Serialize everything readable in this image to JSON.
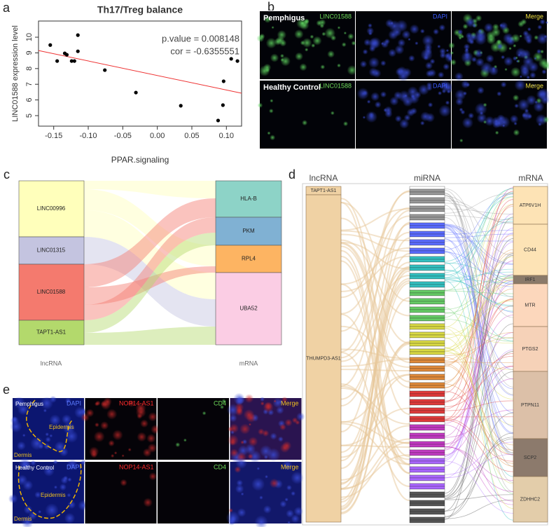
{
  "panel_labels": [
    "a",
    "b",
    "c",
    "d",
    "e"
  ],
  "chart_data": {
    "type": "scatter",
    "title": "Th17/Treg balance",
    "x_label": "PPAR.signaling",
    "y_label": "LINC01588 expression level",
    "annotations": [
      "p.value = 0.008148",
      "cor = -0.6355551"
    ],
    "x": [
      -0.155,
      -0.145,
      -0.134,
      -0.131,
      -0.124,
      -0.12,
      -0.115,
      -0.115,
      -0.076,
      -0.031,
      0.034,
      0.088,
      0.095,
      0.096,
      0.107,
      0.116
    ],
    "values": [
      9.5,
      8.48,
      8.97,
      8.88,
      8.48,
      8.48,
      9.1,
      10.13,
      7.9,
      6.47,
      5.63,
      4.69,
      5.67,
      7.19,
      8.62,
      8.48
    ],
    "color": "#000000",
    "fit_line": {
      "x": [
        -0.172,
        0.122
      ],
      "y": [
        9.15,
        6.43
      ],
      "color": "#ee3333"
    },
    "xlim": [
      -0.172,
      0.122
    ],
    "ylim": [
      4.33,
      11.03
    ],
    "xticks": [
      -0.15,
      {
        "value": -0.1,
        "label": "-0.10"
      },
      -0.05,
      {
        "value": 0,
        "label": "0.00"
      },
      0.05,
      {
        "value": 0.1,
        "label": "0.10"
      }
    ],
    "yticks": [
      5,
      6,
      7,
      8,
      9,
      10
    ]
  },
  "panel_b": {
    "rows": [
      {
        "label": "Pemphigus",
        "channels": [
          "LINC01588",
          "DAPI",
          "Merge"
        ]
      },
      {
        "label": "Healthy Control",
        "channels": [
          "LINC01588",
          "DAPI",
          "Merge"
        ]
      }
    ]
  },
  "panel_c": {
    "left_axis": "lncRNA",
    "right_axis": "mRNA",
    "left_nodes": [
      {
        "label": "LINC00996",
        "color": "#ffffbb"
      },
      {
        "label": "LINC01315",
        "color": "#c4c4e0"
      },
      {
        "label": "LINC01588",
        "color": "#f47a6e"
      },
      {
        "label": "TAPT1-AS1",
        "color": "#b3d96c"
      }
    ],
    "right_nodes": [
      {
        "label": "HLA-B",
        "color": "#8dd3c7"
      },
      {
        "label": "PKM",
        "color": "#80b1d3"
      },
      {
        "label": "RPL4",
        "color": "#fdb462"
      },
      {
        "label": "UBA52",
        "color": "#fbcde4"
      }
    ]
  },
  "panel_d": {
    "columns": [
      "lncRNA",
      "miRNA",
      "mRNA"
    ],
    "lncrna": [
      "TAPT1-AS1",
      "THUMPD3-AS1"
    ],
    "mrna": [
      "ATP6V1H",
      "CD44",
      "IRF1",
      "MTR",
      "PTGS2",
      "PTPN11",
      "SCP2",
      "ZDHHC2"
    ]
  },
  "panel_e": {
    "rows": [
      {
        "label": "Pemphigus",
        "channels": [
          "DAPI",
          "NOP14-AS1",
          "CD4",
          "Merge"
        ],
        "regions": [
          "Epidermis",
          "Dermis"
        ]
      },
      {
        "label": "Healthy Control",
        "channels": [
          "DAPI",
          "NOP14-AS1",
          "CD4",
          "Merge"
        ],
        "regions": [
          "Epidermis",
          "Dermis"
        ]
      }
    ]
  }
}
